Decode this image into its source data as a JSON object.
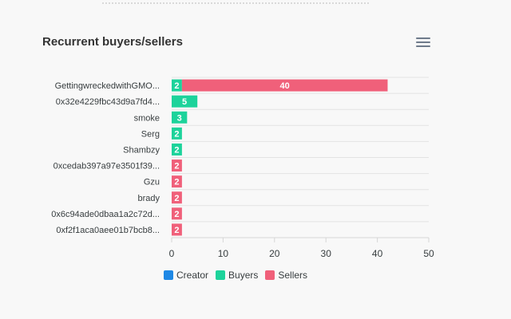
{
  "title": "Recurrent buyers/sellers",
  "menu_icon": "hamburger-menu-icon",
  "colors": {
    "creator": "#1e88e5",
    "buyers": "#1dd39b",
    "sellers": "#f0607a",
    "grid": "#e3e3e3",
    "axis_text": "#373d3f"
  },
  "chart_data": {
    "type": "bar",
    "orientation": "horizontal",
    "stacked": true,
    "title": "Recurrent buyers/sellers",
    "categories": [
      "GettingwreckedwithGMO...",
      "0x32e4229fbc43d9a7fd4...",
      "smoke",
      "Serg",
      "Shambzy",
      "0xcedab397a97e3501f39...",
      "Gzu",
      "brady",
      "0x6c94ade0dbaa1a2c72d...",
      "0xf2f1aca0aee01b7bcb8..."
    ],
    "series": [
      {
        "name": "Creator",
        "values": [
          0,
          0,
          0,
          0,
          0,
          0,
          0,
          0,
          0,
          0
        ]
      },
      {
        "name": "Buyers",
        "values": [
          2,
          5,
          3,
          2,
          2,
          0,
          0,
          0,
          0,
          0
        ]
      },
      {
        "name": "Sellers",
        "values": [
          40,
          0,
          0,
          0,
          0,
          2,
          2,
          2,
          2,
          2
        ]
      }
    ],
    "xlim": [
      0,
      50
    ],
    "xticks": [
      0,
      10,
      20,
      30,
      40,
      50
    ],
    "grid": true,
    "legend_position": "bottom-left"
  },
  "legend": [
    {
      "label": "Creator",
      "color": "#1e88e5"
    },
    {
      "label": "Buyers",
      "color": "#1dd39b"
    },
    {
      "label": "Sellers",
      "color": "#f0607a"
    }
  ]
}
